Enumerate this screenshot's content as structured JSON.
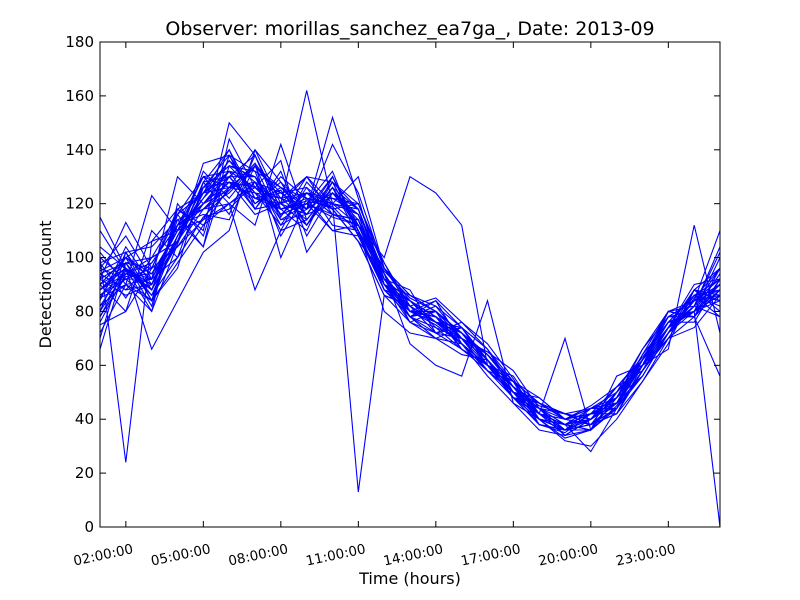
{
  "chart_data": {
    "type": "line",
    "title": "Observer: morillas_sanchez_ea7ga_, Date: 2013-09",
    "xlabel": "Time (hours)",
    "ylabel": "Detection count",
    "x_unit": "hours",
    "xlim": [
      1.0,
      25.0
    ],
    "ylim": [
      0,
      180
    ],
    "xticks": [
      2,
      5,
      8,
      11,
      14,
      17,
      20,
      23
    ],
    "xtick_labels": [
      "02:00:00",
      "05:00:00",
      "08:00:00",
      "11:00:00",
      "14:00:00",
      "17:00:00",
      "20:00:00",
      "23:00:00"
    ],
    "yticks": [
      0,
      20,
      40,
      60,
      80,
      100,
      120,
      140,
      160,
      180
    ],
    "ytick_labels": [
      "0",
      "20",
      "40",
      "60",
      "80",
      "100",
      "120",
      "140",
      "160",
      "180"
    ],
    "grid": false,
    "line_color": "#0000ff",
    "x": [
      1,
      2,
      3,
      4,
      5,
      6,
      7,
      8,
      9,
      10,
      11,
      12,
      13,
      14,
      15,
      16,
      17,
      18,
      19,
      20,
      21,
      22,
      23,
      24,
      25
    ],
    "series": [
      {
        "values": [
          88,
          96,
          80,
          105,
          128,
          130,
          138,
          118,
          121,
          119,
          109,
          90,
          78,
          72,
          70,
          65,
          58,
          44,
          38,
          40,
          46,
          62,
          80,
          78,
          88
        ]
      },
      {
        "values": [
          95,
          100,
          92,
          110,
          120,
          125,
          135,
          122,
          118,
          130,
          112,
          95,
          85,
          80,
          72,
          62,
          50,
          42,
          36,
          38,
          42,
          58,
          74,
          82,
          90
        ]
      },
      {
        "values": [
          92,
          98,
          86,
          100,
          115,
          118,
          128,
          110,
          128,
          118,
          120,
          98,
          82,
          85,
          76,
          68,
          55,
          40,
          33,
          36,
          45,
          60,
          70,
          85,
          96
        ]
      },
      {
        "values": [
          80,
          95,
          88,
          105,
          135,
          138,
          122,
          125,
          112,
          126,
          118,
          92,
          80,
          75,
          68,
          60,
          52,
          45,
          42,
          40,
          50,
          66,
          78,
          80,
          94
        ]
      },
      {
        "values": [
          100,
          92,
          96,
          118,
          124,
          140,
          118,
          130,
          122,
          110,
          108,
          88,
          84,
          78,
          70,
          58,
          48,
          38,
          35,
          42,
          48,
          56,
          72,
          88,
          84
        ]
      },
      {
        "values": [
          85,
          90,
          84,
          98,
          112,
          120,
          126,
          116,
          124,
          122,
          116,
          90,
          76,
          70,
          74,
          66,
          54,
          46,
          40,
          45,
          52,
          63,
          76,
          76,
          92
        ]
      },
      {
        "values": [
          104,
          96,
          90,
          112,
          130,
          126,
          140,
          120,
          116,
          130,
          110,
          94,
          78,
          82,
          70,
          60,
          50,
          42,
          38,
          36,
          44,
          58,
          72,
          84,
          86
        ]
      },
      {
        "values": [
          75,
          80,
          96,
          116,
          104,
          134,
          124,
          112,
          126,
          118,
          106,
          86,
          82,
          76,
          68,
          56,
          46,
          36,
          34,
          40,
          48,
          66,
          80,
          82,
          78
        ]
      },
      {
        "values": [
          90,
          100,
          106,
          110,
          120,
          130,
          130,
          118,
          120,
          115,
          112,
          92,
          80,
          78,
          72,
          64,
          52,
          44,
          42,
          38,
          50,
          60,
          74,
          80,
          88
        ]
      },
      {
        "values": [
          66,
          98,
          82,
          118,
          110,
          150,
          138,
          115,
          130,
          128,
          120,
          96,
          86,
          80,
          66,
          60,
          48,
          40,
          36,
          44,
          46,
          60,
          72,
          86,
          82
        ]
      },
      {
        "values": [
          110,
          95,
          92,
          100,
          126,
          138,
          120,
          128,
          118,
          124,
          114,
          92,
          88,
          72,
          76,
          66,
          50,
          42,
          38,
          42,
          52,
          62,
          76,
          80,
          100
        ]
      },
      {
        "values": [
          70,
          102,
          88,
          106,
          132,
          122,
          134,
          122,
          114,
          126,
          110,
          88,
          80,
          76,
          68,
          58,
          54,
          48,
          40,
          38,
          46,
          56,
          72,
          88,
          84
        ]
      },
      {
        "values": [
          94,
          88,
          98,
          112,
          118,
          128,
          116,
          120,
          130,
          120,
          118,
          94,
          76,
          80,
          72,
          62,
          50,
          44,
          34,
          40,
          48,
          64,
          80,
          84,
          90
        ]
      },
      {
        "values": [
          78,
          93,
          94,
          106,
          124,
          136,
          128,
          114,
          120,
          132,
          108,
          90,
          84,
          74,
          70,
          64,
          52,
          40,
          38,
          44,
          44,
          58,
          70,
          78,
          96
        ]
      },
      {
        "values": [
          98,
          85,
          100,
          116,
          124,
          126,
          134,
          126,
          116,
          120,
          116,
          98,
          80,
          78,
          66,
          60,
          56,
          42,
          36,
          36,
          50,
          62,
          74,
          80,
          86
        ]
      },
      {
        "values": [
          82,
          96,
          86,
          108,
          122,
          132,
          126,
          120,
          124,
          116,
          112,
          90,
          78,
          84,
          74,
          62,
          48,
          46,
          40,
          42,
          46,
          60,
          76,
          86,
          84
        ]
      },
      {
        "values": [
          115,
          96,
          66,
          84,
          102,
          110,
          140,
          128,
          112,
          128,
          118,
          92,
          82,
          76,
          70,
          58,
          50,
          40,
          36,
          40,
          52,
          58,
          72,
          82,
          102
        ]
      },
      {
        "values": [
          90,
          80,
          110,
          100,
          115,
          125,
          135,
          100,
          122,
          118,
          106,
          86,
          76,
          72,
          66,
          60,
          48,
          44,
          42,
          38,
          46,
          62,
          78,
          84,
          88
        ]
      },
      {
        "values": [
          72,
          90,
          123,
          110,
          114,
          130,
          118,
          132,
          108,
          124,
          112,
          94,
          80,
          80,
          72,
          60,
          54,
          46,
          40,
          44,
          48,
          60,
          72,
          80,
          90
        ]
      },
      {
        "values": [
          88,
          94,
          90,
          112,
          126,
          134,
          132,
          126,
          118,
          142,
          124,
          96,
          86,
          82,
          74,
          66,
          52,
          42,
          38,
          42,
          44,
          62,
          74,
          90,
          92
        ]
      },
      {
        "values": [
          80,
          102,
          104,
          114,
          104,
          144,
          126,
          136,
          102,
          116,
          114,
          88,
          78,
          70,
          68,
          58,
          50,
          40,
          32,
          30,
          40,
          54,
          68,
          88,
          86
        ]
      },
      {
        "values": [
          96,
          108,
          92,
          130,
          120,
          128,
          122,
          124,
          126,
          112,
          110,
          92,
          84,
          78,
          72,
          64,
          52,
          44,
          40,
          42,
          48,
          62,
          78,
          84,
          90
        ]
      },
      {
        "values": [
          85,
          100,
          84,
          96,
          128,
          116,
          138,
          118,
          120,
          122,
          120,
          96,
          82,
          76,
          74,
          60,
          50,
          38,
          36,
          38,
          42,
          54,
          70,
          74,
          86
        ]
      },
      {
        "values": [
          92,
          113,
          96,
          104,
          118,
          120,
          112,
          142,
          114,
          126,
          108,
          90,
          80,
          78,
          70,
          62,
          48,
          44,
          38,
          40,
          46,
          62,
          76,
          86,
          92
        ]
      },
      {
        "values": [
          100,
          24,
          106,
          118,
          112,
          126,
          124,
          122,
          130,
          116,
          114,
          94,
          78,
          74,
          66,
          58,
          50,
          46,
          40,
          44,
          50,
          60,
          74,
          80,
          84
        ]
      },
      {
        "values": [
          102,
          90,
          80,
          120,
          108,
          138,
          132,
          108,
          124,
          120,
          118,
          92,
          80,
          80,
          72,
          64,
          54,
          42,
          34,
          36,
          44,
          58,
          72,
          82,
          96
        ]
      },
      {
        "values": [
          86,
          92,
          92,
          112,
          116,
          114,
          134,
          124,
          116,
          128,
          110,
          88,
          84,
          76,
          68,
          60,
          52,
          46,
          42,
          40,
          50,
          60,
          80,
          78,
          88
        ]
      },
      {
        "values": [
          94,
          98,
          100,
          106,
          124,
          132,
          118,
          120,
          112,
          124,
          116,
          90,
          82,
          72,
          74,
          62,
          48,
          38,
          36,
          42,
          42,
          60,
          74,
          88,
          80
        ]
      },
      {
        "values": [
          78,
          96,
          88,
          114,
          118,
          126,
          128,
          116,
          120,
          110,
          112,
          94,
          80,
          80,
          70,
          58,
          50,
          42,
          38,
          36,
          48,
          62,
          74,
          84,
          92
        ]
      },
      {
        "values": [
          90,
          100,
          94,
          110,
          122,
          136,
          124,
          118,
          122,
          120,
          13,
          86,
          82,
          76,
          72,
          62,
          52,
          44,
          36,
          40,
          46,
          64,
          76,
          80,
          86
        ]
      },
      {
        "values": [
          84,
          104,
          90,
          108,
          126,
          128,
          122,
          120,
          162,
          120,
          130,
          96,
          84,
          78,
          68,
          60,
          50,
          40,
          38,
          42,
          52,
          58,
          72,
          84,
          90
        ]
      },
      {
        "values": [
          96,
          92,
          84,
          116,
          130,
          132,
          130,
          112,
          118,
          152,
          122,
          90,
          86,
          80,
          72,
          64,
          54,
          46,
          42,
          44,
          46,
          60,
          78,
          78,
          92
        ]
      },
      {
        "values": [
          88,
          98,
          96,
          104,
          114,
          120,
          88,
          110,
          114,
          126,
          112,
          100,
          130,
          124,
          112,
          60,
          50,
          48,
          40,
          38,
          44,
          56,
          72,
          86,
          88
        ]
      },
      {
        "values": [
          92,
          86,
          90,
          112,
          120,
          128,
          126,
          122,
          124,
          118,
          106,
          94,
          68,
          60,
          56,
          84,
          46,
          40,
          38,
          28,
          44,
          58,
          74,
          82,
          104
        ]
      },
      {
        "values": [
          76,
          94,
          100,
          106,
          128,
          140,
          122,
          118,
          110,
          130,
          110,
          80,
          72,
          70,
          64,
          62,
          48,
          42,
          70,
          36,
          56,
          60,
          74,
          88,
          96
        ]
      },
      {
        "values": [
          90,
          96,
          88,
          112,
          126,
          134,
          130,
          116,
          120,
          116,
          114,
          92,
          78,
          80,
          72,
          60,
          50,
          44,
          36,
          40,
          46,
          62,
          76,
          80,
          0
        ]
      },
      {
        "values": [
          82,
          90,
          92,
          110,
          130,
          120,
          128,
          124,
          118,
          124,
          118,
          90,
          80,
          84,
          68,
          60,
          48,
          42,
          40,
          42,
          46,
          60,
          66,
          112,
          72
        ]
      },
      {
        "values": [
          98,
          102,
          84,
          108,
          124,
          130,
          120,
          126,
          122,
          120,
          112,
          96,
          82,
          76,
          74,
          62,
          52,
          40,
          36,
          40,
          48,
          62,
          74,
          84,
          110
        ]
      },
      {
        "values": [
          86,
          94,
          98,
          112,
          118,
          124,
          134,
          114,
          116,
          128,
          110,
          88,
          84,
          76,
          70,
          58,
          50,
          46,
          42,
          38,
          44,
          58,
          72,
          86,
          78
        ]
      },
      {
        "values": [
          94,
          88,
          90,
          106,
          120,
          132,
          126,
          120,
          124,
          116,
          114,
          92,
          78,
          80,
          72,
          64,
          54,
          38,
          36,
          40,
          46,
          60,
          80,
          78,
          56
        ]
      }
    ]
  }
}
